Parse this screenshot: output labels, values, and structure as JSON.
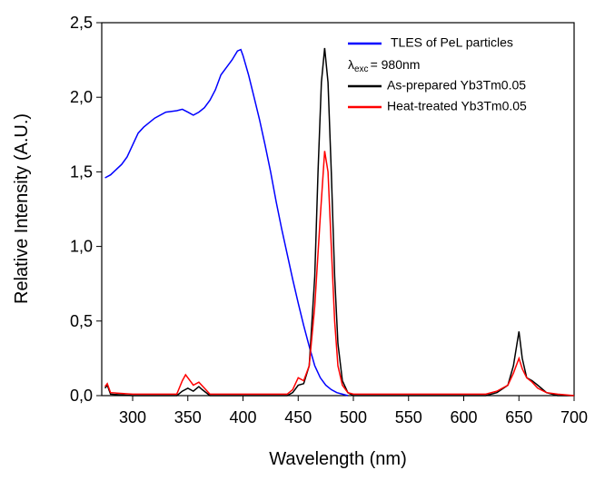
{
  "chart_data": {
    "type": "line",
    "x_label": "Wavelength (nm)",
    "y_label": "Relative Intensity (A.U.)",
    "xlim": [
      272,
      700
    ],
    "xticks": [
      300,
      350,
      400,
      450,
      500,
      550,
      600,
      650,
      700
    ],
    "ylim": [
      0,
      2.5
    ],
    "yticks": [
      {
        "value": 0,
        "label": "0,0"
      },
      {
        "value": 0.5,
        "label": "0,5"
      },
      {
        "value": 1,
        "label": "1,0"
      },
      {
        "value": 1.5,
        "label": "1,5"
      },
      {
        "value": 2,
        "label": "2,0"
      },
      {
        "value": 2.5,
        "label": "2,5"
      }
    ],
    "annotation": {
      "symbol": "λ",
      "subscript": "exc",
      "text": "= 980nm"
    },
    "series": [
      {
        "name": "TLES of PeL particles",
        "color": "#0000ff",
        "x": [
          275,
          280,
          290,
          295,
          300,
          305,
          310,
          320,
          330,
          340,
          345,
          350,
          355,
          360,
          365,
          370,
          375,
          380,
          385,
          390,
          395,
          398,
          400,
          405,
          410,
          415,
          420,
          425,
          430,
          435,
          440,
          445,
          450,
          455,
          460,
          465,
          470,
          475,
          480,
          485,
          490,
          495
        ],
        "values": [
          1.46,
          1.48,
          1.55,
          1.6,
          1.68,
          1.76,
          1.8,
          1.86,
          1.9,
          1.91,
          1.92,
          1.9,
          1.88,
          1.9,
          1.93,
          1.98,
          2.05,
          2.15,
          2.2,
          2.25,
          2.31,
          2.32,
          2.28,
          2.15,
          2.0,
          1.85,
          1.68,
          1.5,
          1.3,
          1.12,
          0.95,
          0.78,
          0.62,
          0.47,
          0.33,
          0.2,
          0.12,
          0.07,
          0.04,
          0.02,
          0.01,
          0
        ]
      },
      {
        "name": "As-prepared Yb3Tm0.05",
        "color": "#000000",
        "x": [
          275,
          277,
          280,
          300,
          340,
          345,
          350,
          355,
          360,
          363,
          370,
          440,
          445,
          450,
          455,
          460,
          465,
          468,
          471,
          474,
          477,
          480,
          483,
          486,
          490,
          495,
          500,
          620,
          630,
          640,
          645,
          650,
          653,
          657,
          662,
          667,
          675,
          685,
          700
        ],
        "values": [
          0.05,
          0.07,
          0.01,
          0,
          0,
          0.03,
          0.05,
          0.03,
          0.06,
          0.04,
          0,
          0,
          0.02,
          0.07,
          0.08,
          0.2,
          0.8,
          1.5,
          2.1,
          2.33,
          2.1,
          1.5,
          0.8,
          0.35,
          0.1,
          0.02,
          0,
          0,
          0.02,
          0.07,
          0.2,
          0.43,
          0.25,
          0.12,
          0.1,
          0.07,
          0.02,
          0,
          0
        ]
      },
      {
        "name": "Heat-treated Yb3Tm0.05",
        "color": "#ff0000",
        "x": [
          275,
          277,
          280,
          300,
          340,
          345,
          348,
          352,
          355,
          360,
          365,
          370,
          440,
          445,
          450,
          455,
          460,
          465,
          470,
          474,
          477,
          480,
          483,
          486,
          490,
          495,
          500,
          620,
          630,
          640,
          645,
          650,
          653,
          657,
          662,
          667,
          675,
          685,
          700
        ],
        "values": [
          0.06,
          0.08,
          0.02,
          0.01,
          0.01,
          0.1,
          0.14,
          0.1,
          0.07,
          0.09,
          0.05,
          0.01,
          0.01,
          0.04,
          0.12,
          0.1,
          0.2,
          0.6,
          1.2,
          1.64,
          1.5,
          1.0,
          0.5,
          0.2,
          0.07,
          0.02,
          0.01,
          0.01,
          0.03,
          0.07,
          0.15,
          0.25,
          0.18,
          0.12,
          0.09,
          0.05,
          0.02,
          0.01,
          0
        ]
      }
    ]
  }
}
